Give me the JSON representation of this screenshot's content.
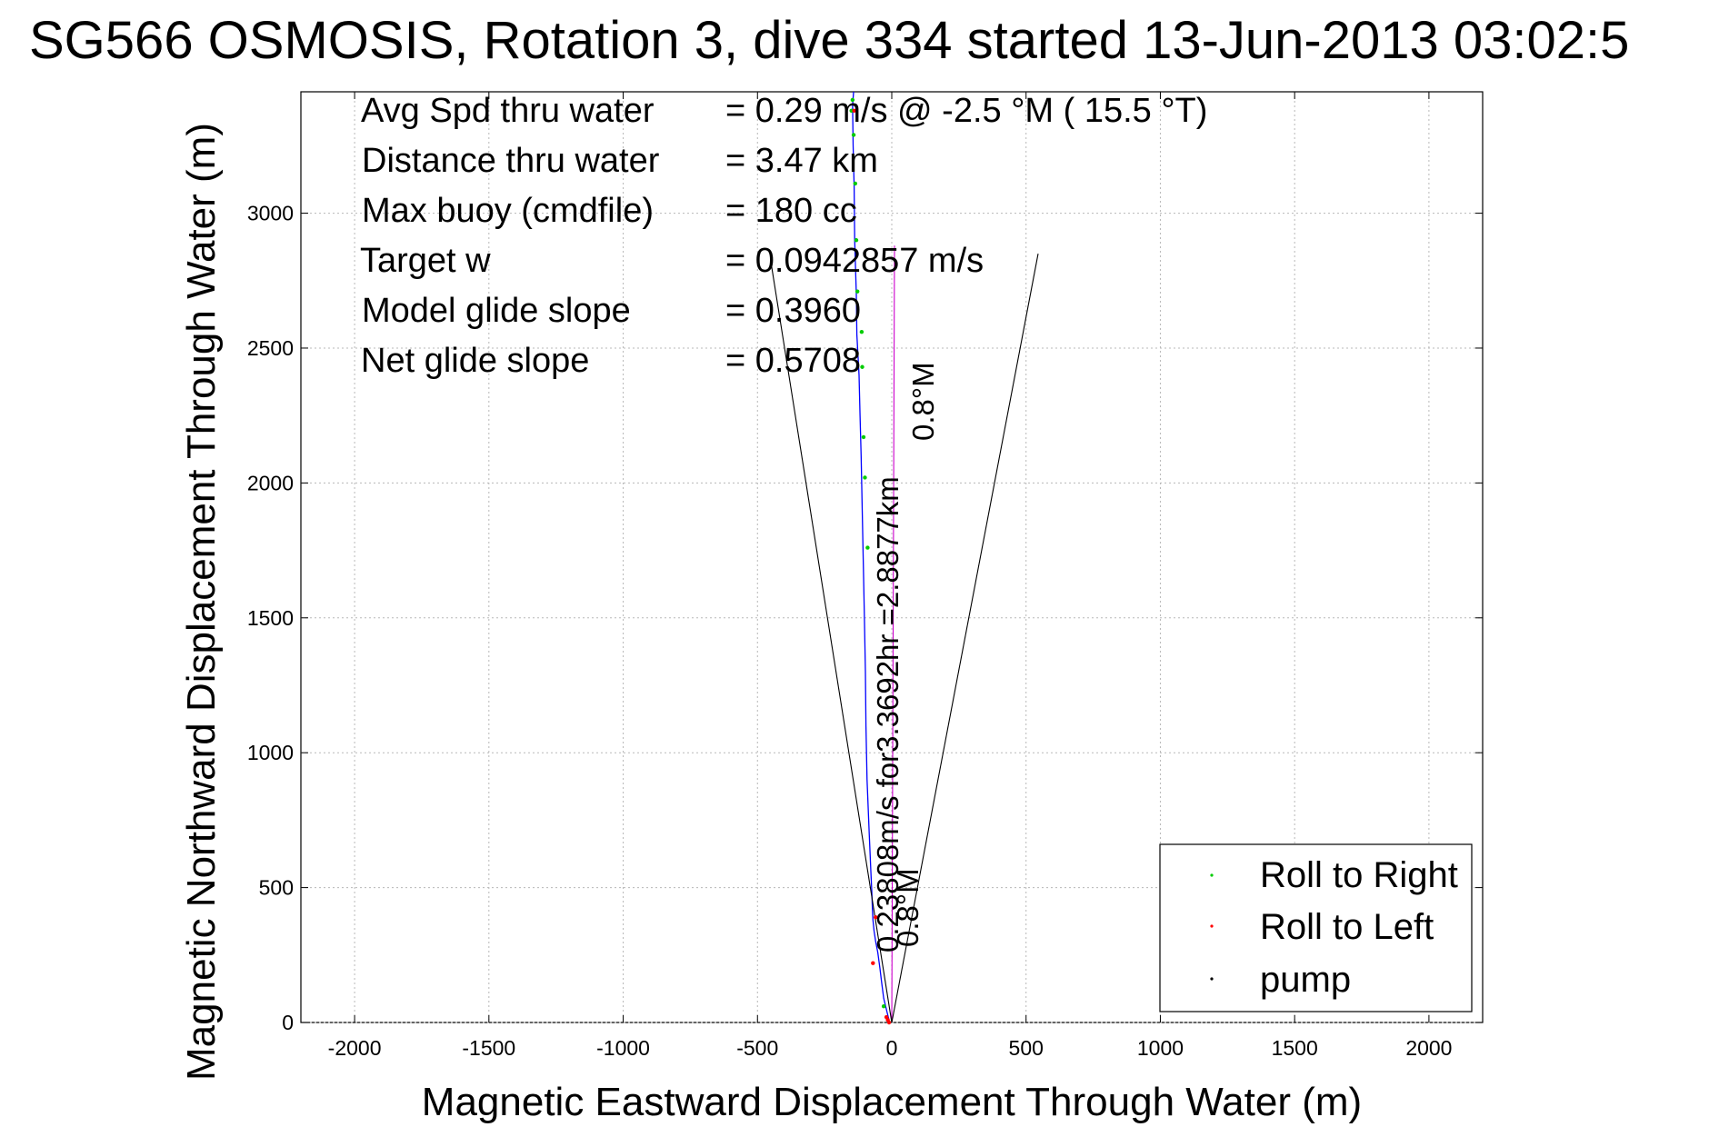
{
  "chart_data": {
    "type": "line",
    "title": "SG566 OSMOSIS, Rotation 3, dive 334 started 13-Jun-2013 03:02:5",
    "xlabel": "Magnetic Eastward Displacement Through Water (m)",
    "ylabel": "Magnetic Northward Displacement Through Water (m)",
    "xlim": [
      -2200,
      2200
    ],
    "ylim": [
      0,
      3450
    ],
    "xticks": [
      -2000,
      -1500,
      -1000,
      -500,
      0,
      500,
      1000,
      1500,
      2000
    ],
    "yticks": [
      0,
      500,
      1000,
      1500,
      2000,
      2500,
      3000
    ],
    "grid": true,
    "legend_position": "bottom-right",
    "legend": [
      {
        "label": "Roll to Right",
        "color": "#00cc00"
      },
      {
        "label": "Roll to Left",
        "color": "#ff0000"
      },
      {
        "label": "pump",
        "color": "#000000"
      }
    ],
    "stats": [
      {
        "label": "Avg Spd thru water",
        "value": "=  0.29 m/s @  -2.5 °M ( 15.5 °T)"
      },
      {
        "label": "Distance thru water",
        "value": "=  3.47 km"
      },
      {
        "label": "Max buoy (cmdfile)",
        "value": "= 180 cc"
      },
      {
        "label": "Target w",
        "value": "= 0.0942857 m/s"
      },
      {
        "label": "Model glide slope",
        "value": "= 0.3960"
      },
      {
        "label": "Net glide slope",
        "value": "= 0.5708"
      }
    ],
    "annotations": {
      "track_label": "0.23808m/s for3.3692hr =2.8877km",
      "heading_top": "0.8°M",
      "heading_bottom": "0.8°M"
    },
    "series": [
      {
        "name": "track",
        "color": "#0000ff",
        "x": [
          -8,
          -18,
          -30,
          -38,
          -44,
          -52,
          -60,
          -66,
          -70,
          -72,
          -74,
          -78,
          -84,
          -92,
          -96,
          -98,
          -102,
          -106,
          -110,
          -114,
          -118,
          -122,
          -130,
          -132,
          -138,
          -140,
          -144,
          -146,
          -142
        ],
        "y": [
          0,
          40,
          90,
          150,
          200,
          260,
          300,
          340,
          380,
          420,
          480,
          560,
          700,
          900,
          1100,
          1300,
          1500,
          1700,
          1900,
          2100,
          2250,
          2400,
          2550,
          2700,
          2900,
          3100,
          3250,
          3400,
          3450
        ]
      },
      {
        "name": "waypoint-direction",
        "color": "#cc00cc",
        "x": [
          0,
          10
        ],
        "y": [
          0,
          2880
        ]
      },
      {
        "name": "cone-left",
        "color": "#000000",
        "x": [
          0,
          -450
        ],
        "y": [
          0,
          2820
        ]
      },
      {
        "name": "cone-right",
        "color": "#000000",
        "x": [
          0,
          545
        ],
        "y": [
          0,
          2850
        ]
      }
    ],
    "points_roll_right": {
      "color": "#00cc00",
      "x": [
        -90,
        -100,
        -105,
        -110,
        -112,
        -128,
        -132,
        -136,
        -142,
        -146,
        -150,
        -30
      ],
      "y": [
        1760,
        2020,
        2170,
        2430,
        2560,
        2710,
        2900,
        3110,
        3290,
        3420,
        3380,
        60
      ]
    },
    "points_roll_left": {
      "color": "#ff0000",
      "x": [
        -70,
        -60,
        -20,
        -10,
        -15,
        -140
      ],
      "y": [
        220,
        390,
        20,
        0,
        10,
        3380
      ]
    }
  }
}
